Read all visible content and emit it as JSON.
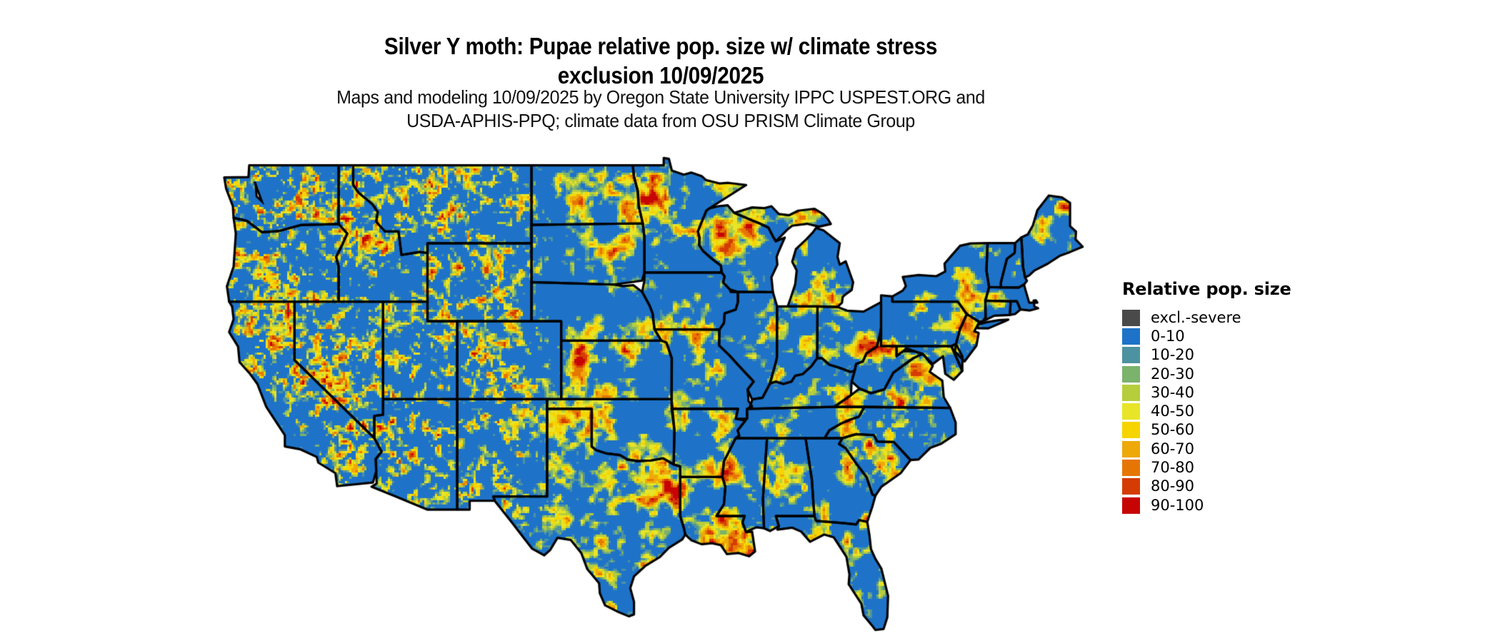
{
  "header": {
    "title": "Silver Y moth: Pupae relative pop. size w/ climate stress\nexclusion 10/09/2025",
    "subtitle": "Maps and modeling 10/09/2025 by Oregon State University IPPC USPEST.ORG and\nUSDA-APHIS-PPQ; climate data from OSU PRISM Climate Group"
  },
  "legend": {
    "title": "Relative pop. size",
    "entries": [
      {
        "label": "excl.-severe",
        "color": "#4a4a4a"
      },
      {
        "label": "0-10",
        "color": "#1e73c8"
      },
      {
        "label": "10-20",
        "color": "#4d92a0"
      },
      {
        "label": "20-30",
        "color": "#7bb26c"
      },
      {
        "label": "30-40",
        "color": "#b6cd3c"
      },
      {
        "label": "40-50",
        "color": "#e8e428"
      },
      {
        "label": "50-60",
        "color": "#f6d400"
      },
      {
        "label": "60-70",
        "color": "#eea908"
      },
      {
        "label": "70-80",
        "color": "#e67603"
      },
      {
        "label": "80-90",
        "color": "#d53c04"
      },
      {
        "label": "90-100",
        "color": "#c70404"
      }
    ]
  },
  "map": {
    "region": "Continental United States",
    "type": "raster model output, state boundaries overlaid",
    "background_color": "#ffffff",
    "border_color": "#000000",
    "base_value_color": "#1e73c8",
    "lon_range": [
      -125.4,
      -66.6
    ],
    "lat_range": [
      24.5,
      49.5
    ]
  }
}
